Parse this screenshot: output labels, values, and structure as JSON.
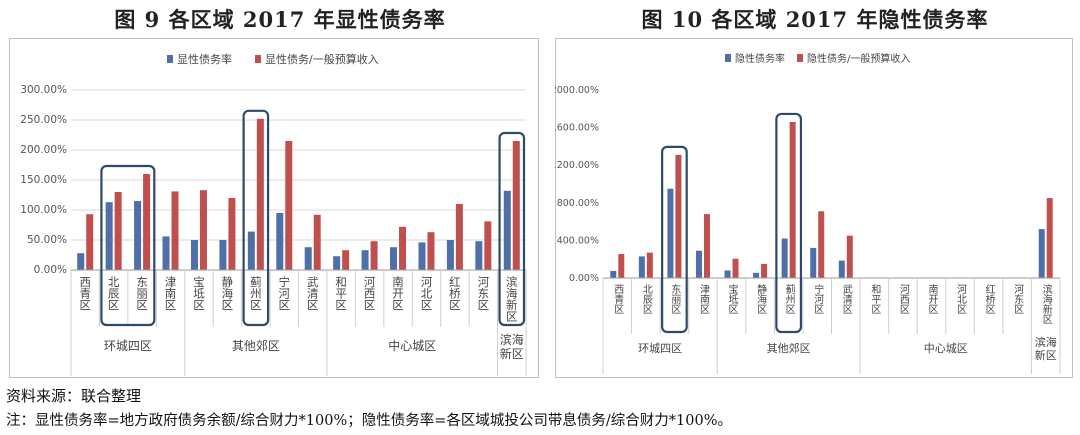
{
  "colors": {
    "explicit": "#4f6fa8",
    "ratio": "#c0504d",
    "highlight": "#2e4a6b",
    "grid": "#d9d9d9",
    "frame": "#bfbfbf"
  },
  "footer": {
    "source": "资料来源：联合整理",
    "note": "注：显性债务率=地方政府债务余额/综合财力*100%；隐性债务率=各区域城投公司带息债务/综合财力*100%。"
  },
  "chart_data": [
    {
      "type": "bar",
      "title": "图 9 各区域 2017 年显性债务率",
      "legend_position": "top",
      "ylim": [
        0,
        300
      ],
      "yticks": [
        "0.00%",
        "50.00%",
        "100.00%",
        "150.00%",
        "200.00%",
        "250.00%",
        "300.00%"
      ],
      "grid": true,
      "categories": [
        "西青区",
        "北辰区",
        "东丽区",
        "津南区",
        "宝坻区",
        "静海区",
        "蓟州区",
        "宁河区",
        "武清区",
        "和平区",
        "河西区",
        "南开区",
        "河北区",
        "红桥区",
        "河东区",
        "滨海新区"
      ],
      "series": [
        {
          "name": "显性债务率",
          "values": [
            28,
            113,
            115,
            56,
            50,
            50,
            64,
            95,
            38,
            23,
            33,
            38,
            46,
            50,
            48,
            132
          ]
        },
        {
          "name": "显性债务/一般预算收入",
          "values": [
            93,
            130,
            160,
            131,
            133,
            120,
            252,
            215,
            92,
            33,
            48,
            72,
            63,
            110,
            81,
            215
          ]
        }
      ],
      "groups": [
        {
          "label": "环城四区",
          "start": 0,
          "end": 3
        },
        {
          "label": "其他郊区",
          "start": 4,
          "end": 8
        },
        {
          "label": "中心城区",
          "start": 9,
          "end": 14
        },
        {
          "label": "滨海新区",
          "start": 15,
          "end": 15
        }
      ],
      "highlight_indices": [
        [
          1,
          2
        ],
        [
          6,
          6
        ],
        [
          15,
          15
        ]
      ]
    },
    {
      "type": "bar",
      "title": "图 10 各区域 2017 年隐性债务率",
      "legend_position": "top",
      "ylim": [
        0,
        2000
      ],
      "yticks": [
        "0.00%",
        "400.00%",
        "800.00%",
        "1200.00%",
        "1600.00%",
        "2000.00%"
      ],
      "grid": false,
      "categories": [
        "西青区",
        "北辰区",
        "东丽区",
        "津南区",
        "宝坻区",
        "静海区",
        "蓟州区",
        "宁河区",
        "武清区",
        "和平区",
        "河西区",
        "南开区",
        "河北区",
        "红桥区",
        "河东区",
        "滨海新区"
      ],
      "series": [
        {
          "name": "隐性债务率",
          "values": [
            75,
            230,
            950,
            290,
            80,
            55,
            420,
            320,
            185,
            0,
            0,
            0,
            0,
            0,
            0,
            520
          ]
        },
        {
          "name": "隐性债务/一般预算收入",
          "values": [
            255,
            270,
            1310,
            680,
            205,
            150,
            1660,
            710,
            450,
            0,
            0,
            0,
            0,
            0,
            0,
            850
          ]
        }
      ],
      "groups": [
        {
          "label": "环城四区",
          "start": 0,
          "end": 3
        },
        {
          "label": "其他郊区",
          "start": 4,
          "end": 8
        },
        {
          "label": "中心城区",
          "start": 9,
          "end": 14
        },
        {
          "label": "滨海新区",
          "start": 15,
          "end": 15
        }
      ],
      "highlight_indices": [
        [
          2,
          2
        ],
        [
          6,
          6
        ]
      ]
    }
  ]
}
